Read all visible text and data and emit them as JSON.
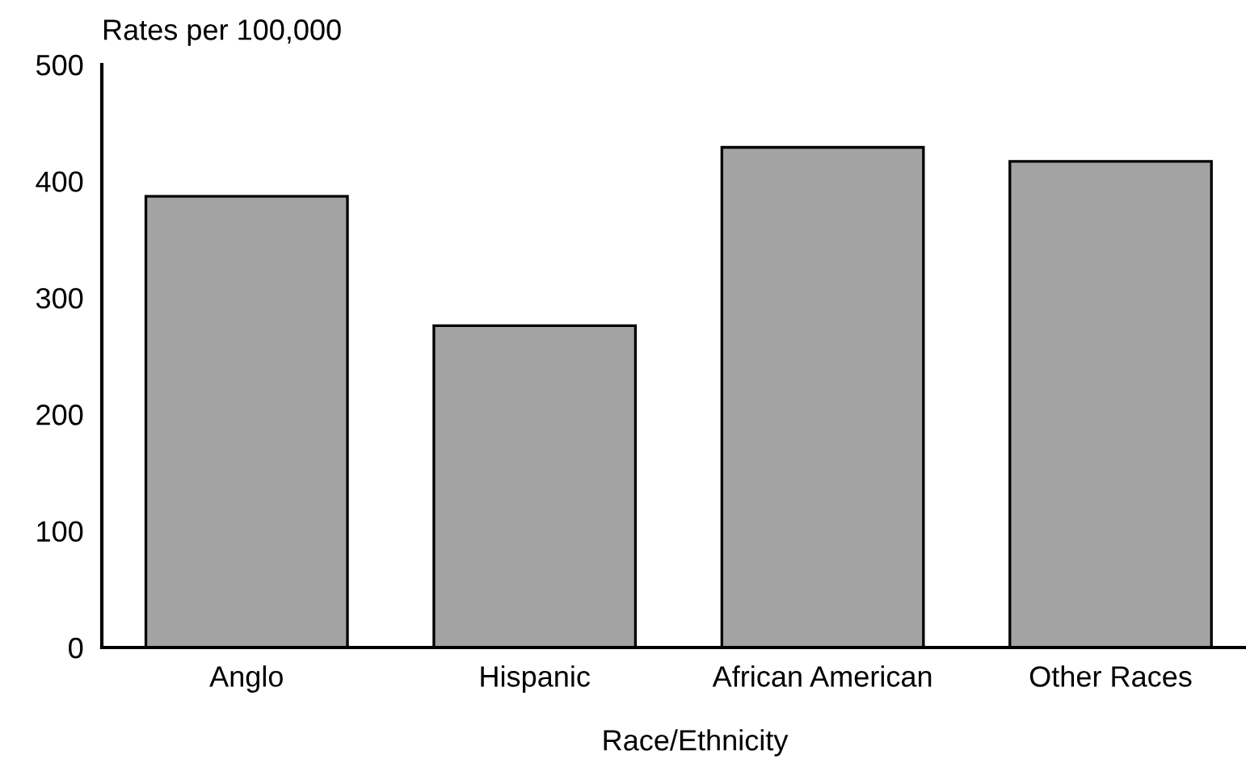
{
  "chart_data": {
    "type": "bar",
    "categories": [
      "Anglo",
      "Hispanic",
      "African American",
      "Other Races"
    ],
    "values": [
      387,
      276,
      429,
      417
    ],
    "color": "#a3a3a3",
    "ylabel": "Rates per 100,000",
    "xlabel": "Race/Ethnicity",
    "ylim": [
      0,
      500
    ],
    "yticks": [
      0,
      100,
      200,
      300,
      400,
      500
    ],
    "grid": false,
    "legend": false
  }
}
